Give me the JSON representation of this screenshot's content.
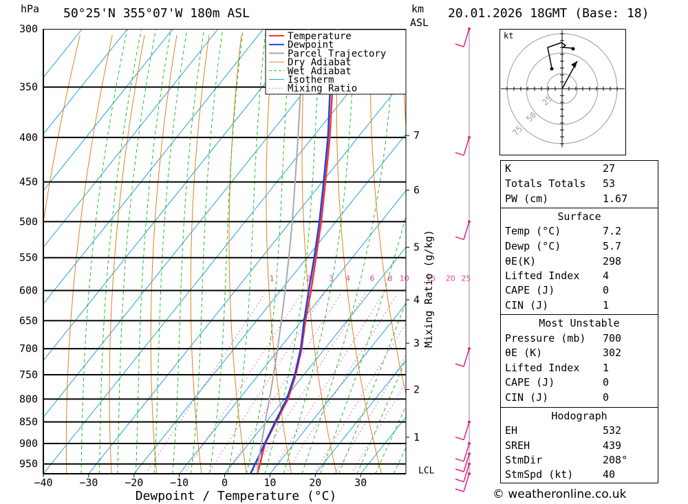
{
  "header": {
    "pressure_unit": "hPa",
    "location": "50°25'N 355°07'W 180m ASL",
    "km_label": "km",
    "asl_label": "ASL",
    "datetime": "20.01.2026 18GMT (Base: 18)"
  },
  "chart_data": {
    "type": "skewt",
    "xlabel": "Dewpoint / Temperature (°C)",
    "ylabel_right": "Mixing Ratio (g/kg)",
    "pressure_levels": [
      300,
      350,
      400,
      450,
      500,
      550,
      600,
      650,
      700,
      750,
      800,
      850,
      900,
      950
    ],
    "pressure_tick_labels": [
      "300",
      "350",
      "400",
      "450",
      "500",
      "550",
      "600",
      "650",
      "700",
      "750",
      "800",
      "850",
      "900",
      "950"
    ],
    "temperature_ticks": [
      -40,
      -30,
      -20,
      -10,
      0,
      10,
      20,
      30
    ],
    "temperature_tick_labels": [
      "−40",
      "−30",
      "−20",
      "−10",
      "0",
      "10",
      "20",
      "30"
    ],
    "xlim": [
      -40,
      40
    ],
    "plim": [
      300,
      975
    ],
    "km_ticks": [
      {
        "km": 7,
        "p": 398
      },
      {
        "km": 6,
        "p": 460
      },
      {
        "km": 5,
        "p": 535
      },
      {
        "km": 4,
        "p": 615
      },
      {
        "km": 3,
        "p": 690
      },
      {
        "km": 2,
        "p": 780
      },
      {
        "km": 1,
        "p": 885
      }
    ],
    "lcl": {
      "label": "LCL",
      "p": 965
    },
    "mixing_ratio_labels": [
      "1",
      "2",
      "3",
      "4",
      "6",
      "8",
      "10",
      "15",
      "20",
      "25"
    ],
    "mixing_ratio_label_p": 588,
    "legend": {
      "position": "top-right",
      "entries": [
        {
          "name": "Temperature",
          "color": "#ff3030",
          "style": "solid"
        },
        {
          "name": "Dewpoint",
          "color": "#2040e0",
          "style": "solid"
        },
        {
          "name": "Parcel Trajectory",
          "color": "#a8a8a8",
          "style": "solid"
        },
        {
          "name": "Dry Adiabat",
          "color": "#e08020",
          "style": "solid"
        },
        {
          "name": "Wet Adiabat",
          "color": "#20c020",
          "style": "dashed"
        },
        {
          "name": "Isotherm",
          "color": "#20a0e0",
          "style": "solid"
        },
        {
          "name": "Mixing Ratio",
          "color": "#e040a0",
          "style": "dotted"
        }
      ]
    },
    "series": [
      {
        "name": "Temperature",
        "color": "#ff3030",
        "points": [
          [
            975,
            7.2
          ],
          [
            950,
            6.1
          ],
          [
            925,
            4.8
          ],
          [
            900,
            3.6
          ],
          [
            850,
            2.2
          ],
          [
            800,
            0.8
          ],
          [
            750,
            -1.8
          ],
          [
            700,
            -5.1
          ],
          [
            650,
            -9.2
          ],
          [
            600,
            -13.3
          ],
          [
            550,
            -18.0
          ],
          [
            500,
            -23.2
          ],
          [
            450,
            -29.3
          ],
          [
            400,
            -36.2
          ],
          [
            350,
            -44.5
          ],
          [
            300,
            -53.5
          ]
        ]
      },
      {
        "name": "Dewpoint",
        "color": "#2040e0",
        "points": [
          [
            975,
            5.7
          ],
          [
            950,
            5.0
          ],
          [
            925,
            4.3
          ],
          [
            900,
            3.5
          ],
          [
            850,
            2.0
          ],
          [
            800,
            0.5
          ],
          [
            750,
            -2.0
          ],
          [
            700,
            -5.3
          ],
          [
            650,
            -9.5
          ],
          [
            600,
            -13.8
          ],
          [
            550,
            -18.4
          ],
          [
            500,
            -23.6
          ],
          [
            450,
            -29.7
          ],
          [
            400,
            -36.6
          ],
          [
            350,
            -45.0
          ],
          [
            300,
            -54.0
          ]
        ]
      },
      {
        "name": "Parcel Trajectory",
        "color": "#a8a8a8",
        "points": [
          [
            975,
            7.2
          ],
          [
            950,
            5.6
          ],
          [
            900,
            2.8
          ],
          [
            850,
            -0.2
          ],
          [
            800,
            -3.3
          ],
          [
            750,
            -6.7
          ],
          [
            700,
            -10.4
          ],
          [
            650,
            -14.5
          ],
          [
            600,
            -19.0
          ],
          [
            550,
            -24.0
          ],
          [
            500,
            -29.6
          ],
          [
            450,
            -36.0
          ],
          [
            400,
            -43.2
          ],
          [
            350,
            -51.5
          ],
          [
            300,
            -60.0
          ]
        ]
      }
    ],
    "wind_barb_levels": [
      300,
      400,
      500,
      700,
      850,
      900,
      925,
      950,
      975
    ],
    "stability_indices": {
      "K": 27,
      "Totals Totals": 53,
      "PW (cm)": 1.67,
      "surface": {
        "Temp (°C)": 7.2,
        "Dewp (°C)": 5.7,
        "θE (K)": 298,
        "Lifted Index": 4,
        "CAPE (J)": 0,
        "CIN (J)": 1
      },
      "most_unstable": {
        "Pressure (mb)": 700,
        "θE (K)": 302,
        "Lifted Index": 1,
        "CAPE (J)": 0,
        "CIN (J)": 0
      },
      "hodograph": {
        "EH": 532,
        "SREH": 439,
        "StmDir": "208°",
        "StmSpd (kt)": 40
      }
    }
  },
  "hodograph": {
    "unit": "kt",
    "rings": [
      "25",
      "50",
      "75"
    ]
  },
  "panel": {
    "indices": [
      {
        "label": "K",
        "value": "27"
      },
      {
        "label": "Totals Totals",
        "value": "53"
      },
      {
        "label": "PW (cm)",
        "value": "1.67"
      }
    ],
    "surface": {
      "title": "Surface",
      "rows": [
        {
          "label": "Temp (°C)",
          "value": "7.2"
        },
        {
          "label": "Dewp (°C)",
          "value": "5.7"
        },
        {
          "label": "θE(K)",
          "value": "298"
        },
        {
          "label": "Lifted Index",
          "value": "4"
        },
        {
          "label": "CAPE (J)",
          "value": "0"
        },
        {
          "label": "CIN (J)",
          "value": "1"
        }
      ]
    },
    "most_unstable": {
      "title": "Most Unstable",
      "rows": [
        {
          "label": "Pressure (mb)",
          "value": "700"
        },
        {
          "label": "θE (K)",
          "value": "302"
        },
        {
          "label": "Lifted Index",
          "value": "1"
        },
        {
          "label": "CAPE (J)",
          "value": "0"
        },
        {
          "label": "CIN (J)",
          "value": "0"
        }
      ]
    },
    "hodograph": {
      "title": "Hodograph",
      "rows": [
        {
          "label": "EH",
          "value": "532"
        },
        {
          "label": "SREH",
          "value": "439"
        },
        {
          "label": "StmDir",
          "value": "208°"
        },
        {
          "label": "StmSpd (kt)",
          "value": "40"
        }
      ]
    }
  },
  "footer": {
    "copyright": "© weatheronline.co.uk"
  }
}
